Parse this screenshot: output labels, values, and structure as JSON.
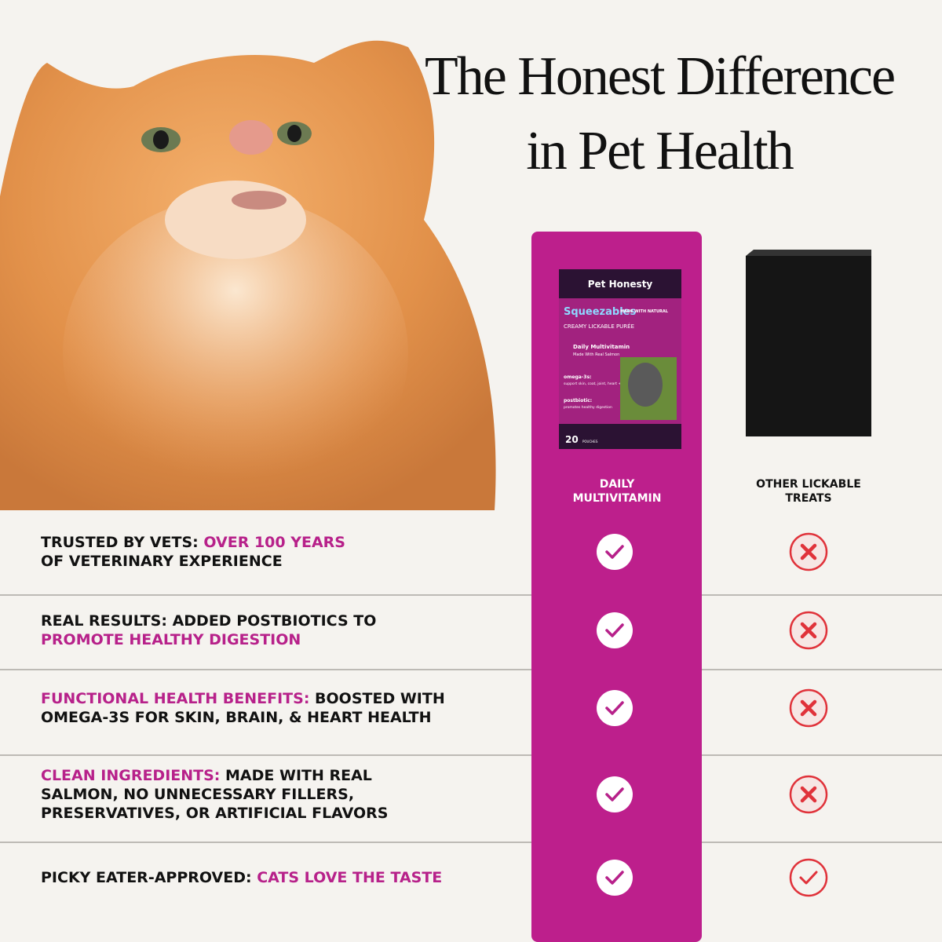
{
  "header": {
    "title_lines": [
      "The Honest Difference",
      "in Pet Health"
    ]
  },
  "product": {
    "brand": "Pet Honesty",
    "name": "Squeezables",
    "badge": "MADE WITH NATURAL",
    "subtitle": "CREAMY LICKABLE PURÉE",
    "flavor": "Daily Multivitamin",
    "flavor_note": "Made With Real Salmon",
    "benefit_1_title": "omega-3s:",
    "benefit_1_text": "support skin, coat, joint, heart + brain health",
    "benefit_2_title": "postbiotic:",
    "benefit_2_text": "promotes healthy digestion",
    "count": "20",
    "count_unit": "POUCHES"
  },
  "columns": [
    {
      "label_lines": [
        "DAILY",
        "MULTIVITAMIN"
      ]
    },
    {
      "label_lines": [
        "OTHER LICKABLE",
        "TREATS"
      ]
    }
  ],
  "rows": [
    {
      "lines": [
        [
          {
            "text": "TRUSTED BY VETS: ",
            "accent": false
          },
          {
            "text": "OVER 100 YEARS",
            "accent": true
          }
        ],
        [
          {
            "text": "OF VETERINARY EXPERIENCE",
            "accent": false
          }
        ]
      ],
      "ours": "check",
      "others": "cross"
    },
    {
      "lines": [
        [
          {
            "text": "REAL RESULTS: ADDED POSTBIOTICS TO",
            "accent": false
          }
        ],
        [
          {
            "text": "PROMOTE HEALTHY DIGESTION",
            "accent": true
          }
        ]
      ],
      "ours": "check",
      "others": "cross"
    },
    {
      "lines": [
        [
          {
            "text": "FUNCTIONAL HEALTH BENEFITS: ",
            "accent": true
          },
          {
            "text": "BOOSTED WITH",
            "accent": false
          }
        ],
        [
          {
            "text": "OMEGA-3S FOR SKIN, BRAIN, & HEART HEALTH",
            "accent": false
          }
        ]
      ],
      "ours": "check",
      "others": "cross"
    },
    {
      "lines": [
        [
          {
            "text": "CLEAN INGREDIENTS: ",
            "accent": true
          },
          {
            "text": "MADE WITH REAL",
            "accent": false
          }
        ],
        [
          {
            "text": "SALMON, NO UNNECESSARY FILLERS,",
            "accent": false
          }
        ],
        [
          {
            "text": "PRESERVATIVES, OR ARTIFICIAL FLAVORS",
            "accent": false
          }
        ]
      ],
      "ours": "check",
      "others": "cross"
    },
    {
      "lines": [
        [
          {
            "text": "PICKY EATER-APPROVED: ",
            "accent": false
          },
          {
            "text": "CATS LOVE THE TASTE",
            "accent": true
          }
        ]
      ],
      "ours": "check",
      "others": "check"
    }
  ]
}
